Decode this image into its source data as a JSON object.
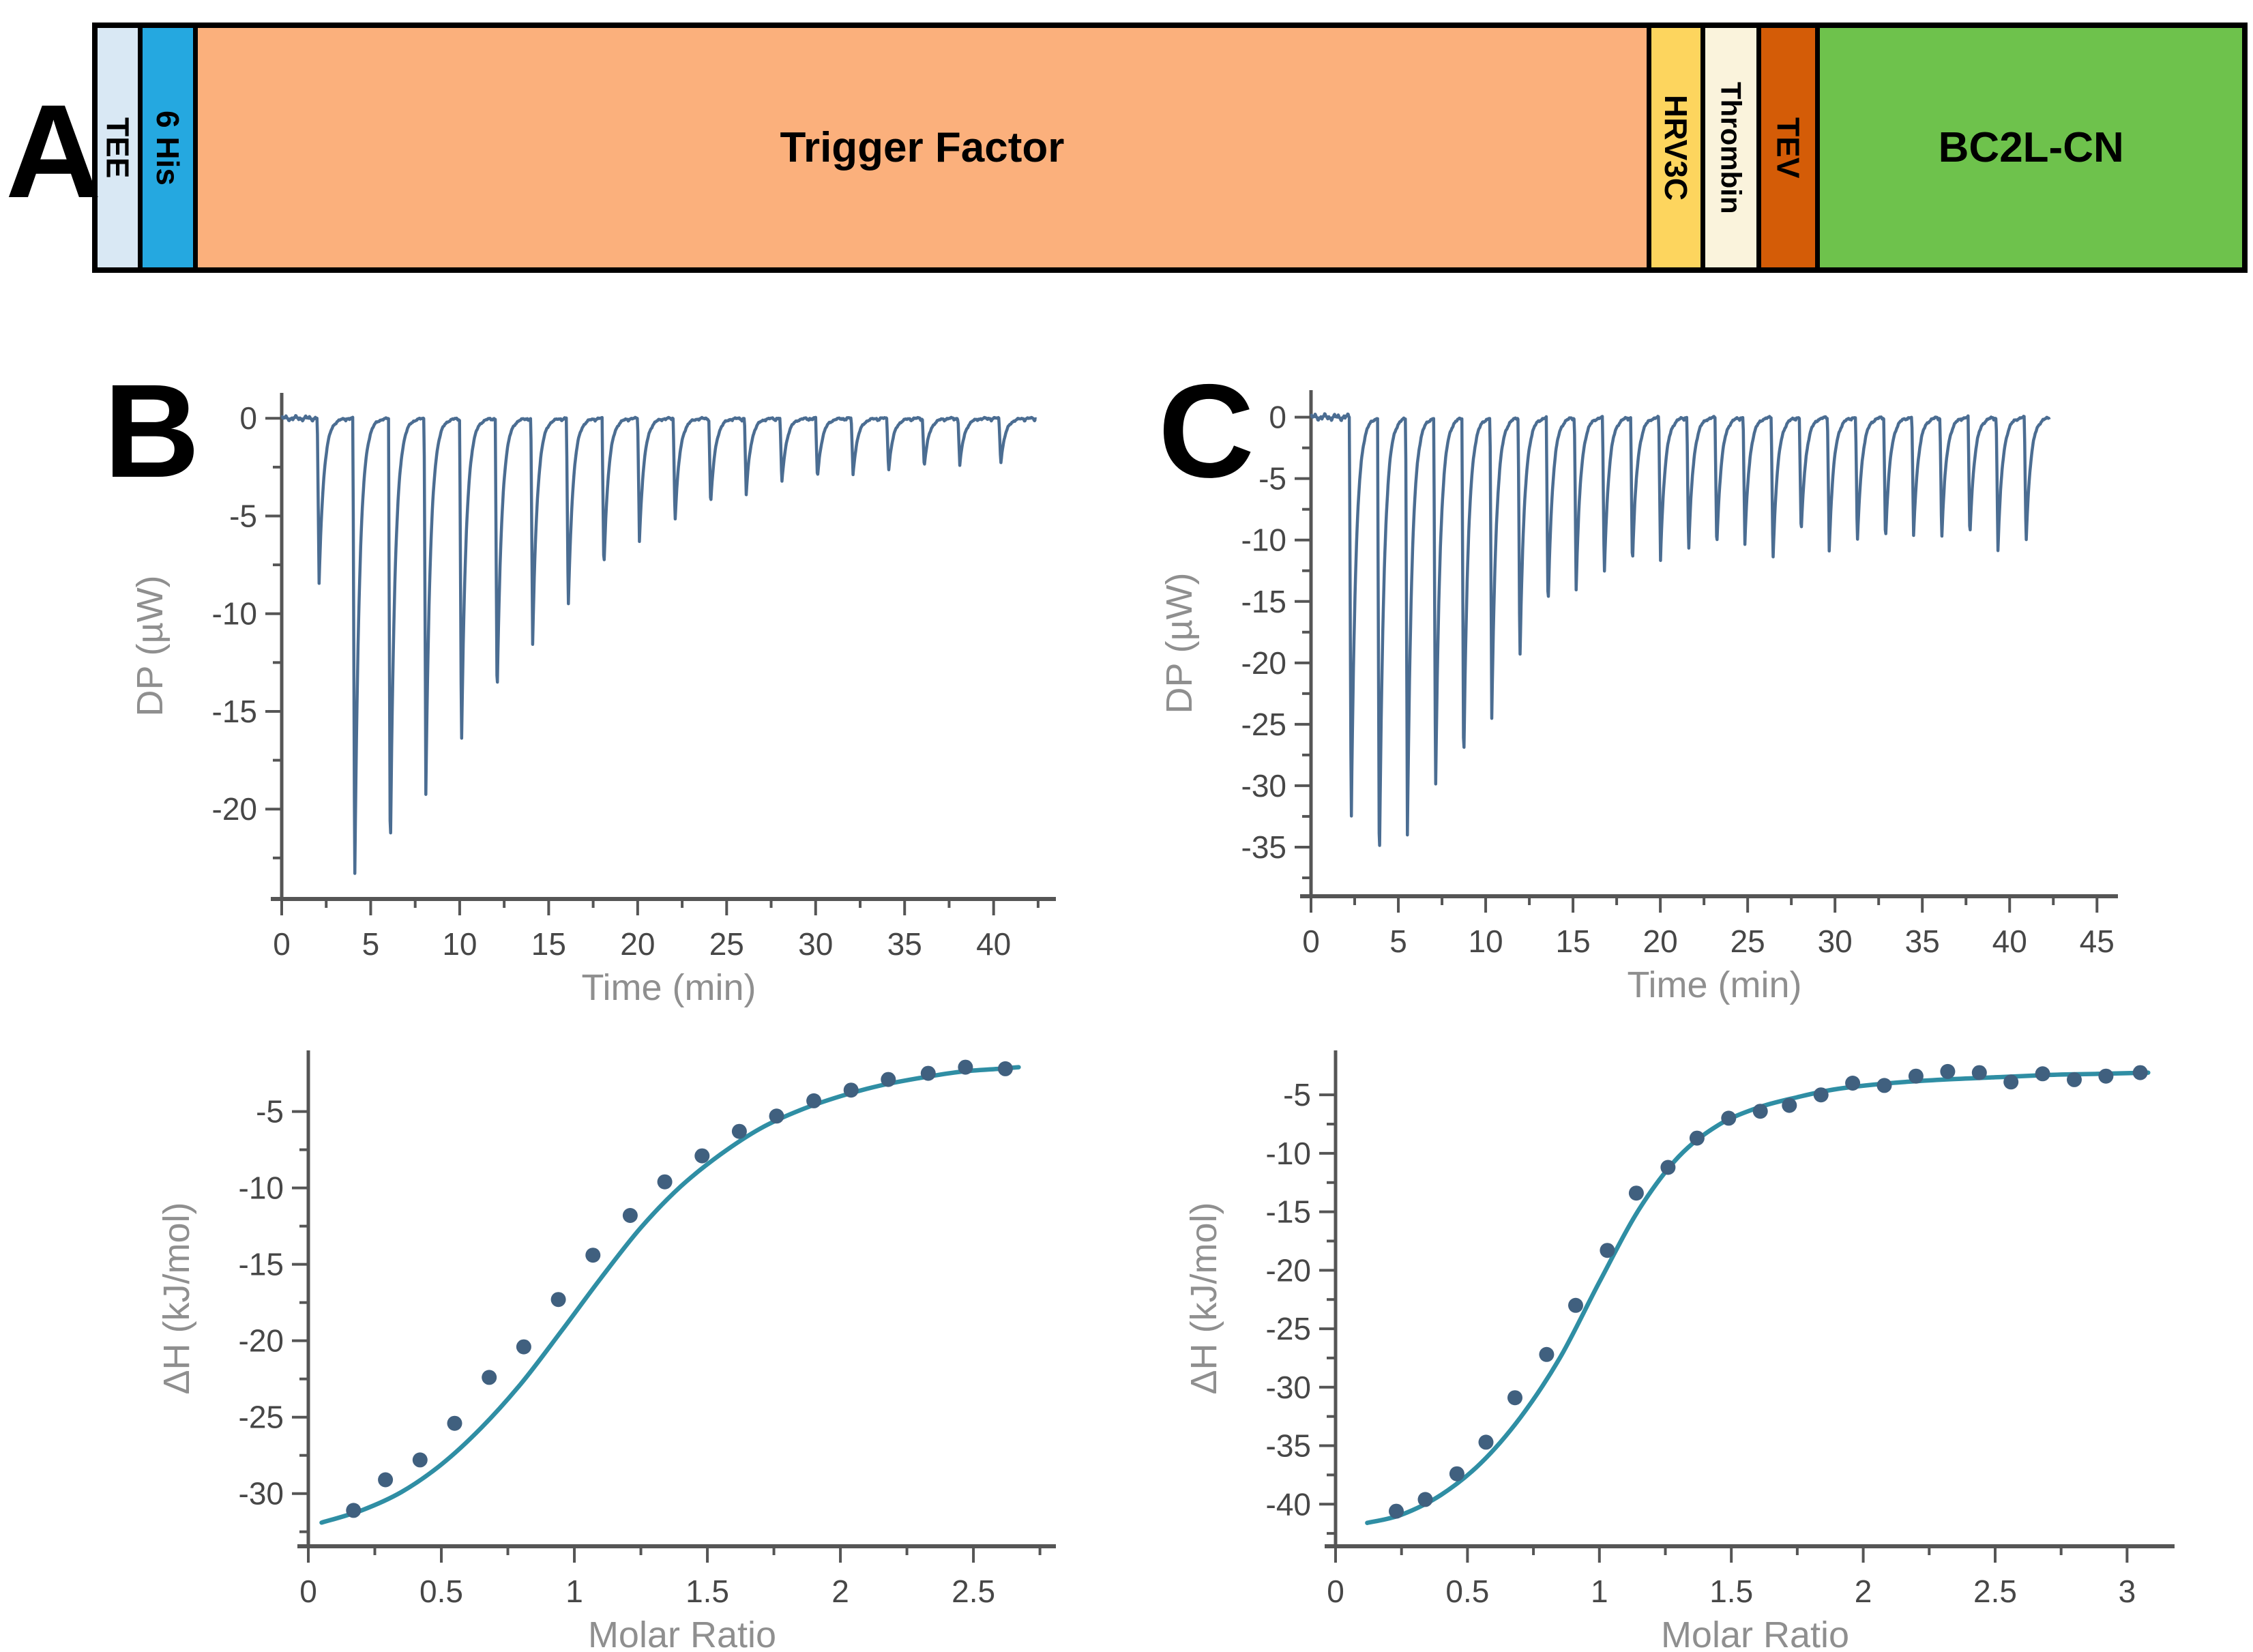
{
  "page": {
    "background": "#ffffff"
  },
  "panel_letters": {
    "a": "A",
    "b": "B",
    "c": "C"
  },
  "construct": {
    "border_color": "#000000",
    "segments": [
      {
        "label": "TEE",
        "color": "#d9e8f4",
        "weight": 59,
        "vertical": true
      },
      {
        "label": "6 His",
        "color": "#25a8e0",
        "weight": 75,
        "vertical": true
      },
      {
        "label": "Trigger Factor",
        "color": "#fbb07c",
        "weight": 2135,
        "vertical": false
      },
      {
        "label": "HRV3C",
        "color": "#fdd55e",
        "weight": 73,
        "vertical": true
      },
      {
        "label": "Thrombin",
        "color": "#faf3dc",
        "weight": 75,
        "vertical": true
      },
      {
        "label": "TEV",
        "color": "#d45c07",
        "weight": 80,
        "vertical": true
      },
      {
        "label": "BC2L-CN",
        "color": "#6ec24c",
        "weight": 622,
        "vertical": false
      }
    ]
  },
  "colors": {
    "trace": "#4b6d92",
    "point": "#40607f",
    "fit": "#2f8ea4",
    "axis": "#555555",
    "tick_label": "#474747",
    "axis_title": "#8f8f8f"
  },
  "chart_data": [
    {
      "id": "b-thermogram",
      "panel": "B",
      "type": "line",
      "xlabel": "Time (min)",
      "ylabel": "DP (µW)",
      "xlim": [
        0,
        43.5
      ],
      "ylim": [
        1.3,
        -24.6
      ],
      "xticks": [
        0,
        5,
        10,
        15,
        20,
        25,
        30,
        35,
        40
      ],
      "yticks": [
        0,
        -5,
        -10,
        -15,
        -20
      ],
      "grid": false,
      "legend": null,
      "noise": 0.15,
      "trace_end": 42.4,
      "injections": [
        [
          2.0,
          -8.5
        ],
        [
          4.0,
          -24.2
        ],
        [
          6.0,
          -22.9
        ],
        [
          8.0,
          -19.2
        ],
        [
          10.0,
          -17.0
        ],
        [
          12.0,
          -14.6
        ],
        [
          14.0,
          -11.6
        ],
        [
          16.0,
          -9.9
        ],
        [
          18.0,
          -7.8
        ],
        [
          20.0,
          -6.3
        ],
        [
          22.0,
          -5.3
        ],
        [
          24.0,
          -4.5
        ],
        [
          26.0,
          -3.9
        ],
        [
          28.0,
          -3.4
        ],
        [
          30.0,
          -3.1
        ],
        [
          32.0,
          -2.9
        ],
        [
          34.0,
          -2.7
        ],
        [
          36.0,
          -2.5
        ],
        [
          38.0,
          -2.4
        ],
        [
          40.3,
          -2.3
        ]
      ]
    },
    {
      "id": "b-isotherm",
      "panel": "B",
      "type": "scatter",
      "xlabel": "Molar Ratio",
      "ylabel": "ΔH (kJ/mol)",
      "xlim": [
        0,
        2.81
      ],
      "ylim": [
        -1.0,
        -33.45
      ],
      "xticks": [
        0,
        0.5,
        1,
        1.5,
        2,
        2.5
      ],
      "yticks": [
        -5,
        -10,
        -15,
        -20,
        -25,
        -30
      ],
      "grid": false,
      "legend": null,
      "points": [
        [
          0.17,
          -31.1
        ],
        [
          0.29,
          -29.1
        ],
        [
          0.42,
          -27.8
        ],
        [
          0.55,
          -25.4
        ],
        [
          0.68,
          -22.4
        ],
        [
          0.81,
          -20.4
        ],
        [
          0.94,
          -17.3
        ],
        [
          1.07,
          -14.4
        ],
        [
          1.21,
          -11.8
        ],
        [
          1.34,
          -9.6
        ],
        [
          1.48,
          -7.9
        ],
        [
          1.62,
          -6.3
        ],
        [
          1.76,
          -5.3
        ],
        [
          1.9,
          -4.3
        ],
        [
          2.04,
          -3.6
        ],
        [
          2.18,
          -2.9
        ],
        [
          2.33,
          -2.5
        ],
        [
          2.47,
          -2.1
        ],
        [
          2.62,
          -2.2
        ]
      ],
      "fit": [
        [
          0.05,
          -31.9
        ],
        [
          0.2,
          -31.1
        ],
        [
          0.35,
          -29.9
        ],
        [
          0.5,
          -28.1
        ],
        [
          0.65,
          -25.7
        ],
        [
          0.8,
          -22.8
        ],
        [
          0.95,
          -19.4
        ],
        [
          1.1,
          -15.9
        ],
        [
          1.25,
          -12.6
        ],
        [
          1.4,
          -9.9
        ],
        [
          1.55,
          -7.8
        ],
        [
          1.7,
          -6.1
        ],
        [
          1.85,
          -4.9
        ],
        [
          2.0,
          -4.0
        ],
        [
          2.15,
          -3.3
        ],
        [
          2.3,
          -2.8
        ],
        [
          2.45,
          -2.4
        ],
        [
          2.6,
          -2.2
        ],
        [
          2.67,
          -2.1
        ]
      ]
    },
    {
      "id": "c-thermogram",
      "panel": "C",
      "type": "line",
      "xlabel": "Time (min)",
      "ylabel": "DP (µW)",
      "xlim": [
        0,
        46.2
      ],
      "ylim": [
        2.2,
        -39.0
      ],
      "xticks": [
        0,
        5,
        10,
        15,
        20,
        25,
        30,
        35,
        40,
        45
      ],
      "yticks": [
        0,
        -5,
        -10,
        -15,
        -20,
        -25,
        -30,
        -35
      ],
      "grid": false,
      "legend": null,
      "noise": 0.3,
      "trace_end": 42.3,
      "injections": [
        [
          2.2,
          -33.7
        ],
        [
          3.81,
          -37.7
        ],
        [
          5.42,
          -34.0
        ],
        [
          7.03,
          -31.1
        ],
        [
          8.64,
          -29.0
        ],
        [
          10.25,
          -24.6
        ],
        [
          11.86,
          -20.0
        ],
        [
          13.47,
          -15.8
        ],
        [
          15.08,
          -14.0
        ],
        [
          16.69,
          -13.0
        ],
        [
          18.3,
          -12.2
        ],
        [
          19.91,
          -11.6
        ],
        [
          21.52,
          -11.1
        ],
        [
          23.13,
          -10.7
        ],
        [
          24.74,
          -10.4
        ],
        [
          26.35,
          -11.8
        ],
        [
          27.96,
          -9.7
        ],
        [
          29.57,
          -10.9
        ],
        [
          31.18,
          -10.4
        ],
        [
          32.79,
          -10.2
        ],
        [
          34.4,
          -9.7
        ],
        [
          36.01,
          -10.0
        ],
        [
          37.62,
          -9.9
        ],
        [
          39.23,
          -10.8
        ],
        [
          40.84,
          -10.3
        ]
      ]
    },
    {
      "id": "c-isotherm",
      "panel": "C",
      "type": "scatter",
      "xlabel": "Molar Ratio",
      "ylabel": "ΔH (kJ/mol)",
      "xlim": [
        0,
        3.18
      ],
      "ylim": [
        -1.2,
        -43.6
      ],
      "xticks": [
        0,
        0.5,
        1,
        1.5,
        2,
        2.5,
        3
      ],
      "yticks": [
        -5,
        -10,
        -15,
        -20,
        -25,
        -30,
        -35,
        -40
      ],
      "grid": false,
      "legend": null,
      "points": [
        [
          0.23,
          -40.6
        ],
        [
          0.34,
          -39.6
        ],
        [
          0.46,
          -37.4
        ],
        [
          0.57,
          -34.7
        ],
        [
          0.68,
          -30.9
        ],
        [
          0.8,
          -27.2
        ],
        [
          0.91,
          -23.0
        ],
        [
          1.03,
          -18.3
        ],
        [
          1.14,
          -13.4
        ],
        [
          1.26,
          -11.2
        ],
        [
          1.37,
          -8.7
        ],
        [
          1.49,
          -7.0
        ],
        [
          1.61,
          -6.4
        ],
        [
          1.72,
          -5.9
        ],
        [
          1.84,
          -5.0
        ],
        [
          1.96,
          -4.0
        ],
        [
          2.08,
          -4.2
        ],
        [
          2.2,
          -3.4
        ],
        [
          2.32,
          -3.0
        ],
        [
          2.44,
          -3.1
        ],
        [
          2.56,
          -3.9
        ],
        [
          2.68,
          -3.2
        ],
        [
          2.8,
          -3.7
        ],
        [
          2.92,
          -3.4
        ],
        [
          3.05,
          -3.1
        ]
      ],
      "fit": [
        [
          0.12,
          -41.6
        ],
        [
          0.25,
          -40.9
        ],
        [
          0.4,
          -39.2
        ],
        [
          0.55,
          -36.5
        ],
        [
          0.7,
          -32.6
        ],
        [
          0.85,
          -27.5
        ],
        [
          1.0,
          -21.0
        ],
        [
          1.15,
          -14.8
        ],
        [
          1.3,
          -10.3
        ],
        [
          1.45,
          -7.6
        ],
        [
          1.6,
          -6.1
        ],
        [
          1.75,
          -5.2
        ],
        [
          1.9,
          -4.5
        ],
        [
          2.1,
          -4.0
        ],
        [
          2.3,
          -3.7
        ],
        [
          2.5,
          -3.5
        ],
        [
          2.7,
          -3.3
        ],
        [
          2.9,
          -3.2
        ],
        [
          3.08,
          -3.1
        ]
      ]
    }
  ]
}
